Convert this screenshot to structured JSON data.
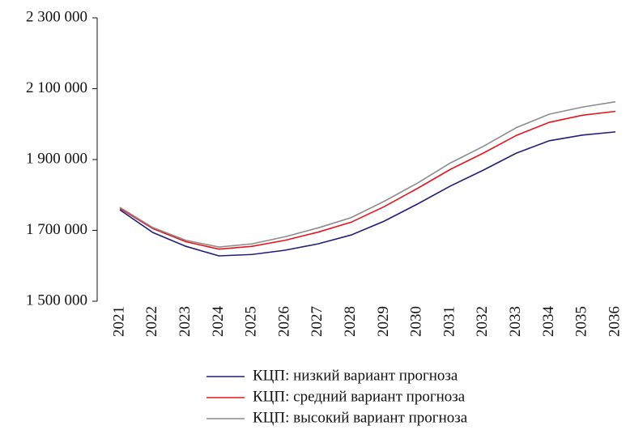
{
  "chart_data": {
    "type": "line",
    "categories": [
      "2021",
      "2022",
      "2023",
      "2024",
      "2025",
      "2026",
      "2027",
      "2028",
      "2029",
      "2030",
      "2031",
      "2032",
      "2033",
      "2034",
      "2035",
      "2036"
    ],
    "series": [
      {
        "name": "КЦП: низкий вариант прогноза",
        "color": "#1f1f7a",
        "values": [
          1758000,
          1694000,
          1655000,
          1628000,
          1632000,
          1644000,
          1662000,
          1687000,
          1726000,
          1774000,
          1825000,
          1870000,
          1918000,
          1953000,
          1969000,
          1978000
        ]
      },
      {
        "name": "КЦП: средний вариант прогноза",
        "color": "#e8141b",
        "values": [
          1762000,
          1705000,
          1668000,
          1647000,
          1655000,
          1672000,
          1695000,
          1723000,
          1767000,
          1818000,
          1872000,
          1918000,
          1968000,
          2005000,
          2025000,
          2036000
        ]
      },
      {
        "name": "КЦП: высокий вариант прогноза",
        "color": "#8c8c8c",
        "values": [
          1765000,
          1708000,
          1672000,
          1653000,
          1662000,
          1682000,
          1707000,
          1736000,
          1782000,
          1833000,
          1890000,
          1937000,
          1990000,
          2028000,
          2048000,
          2063000
        ]
      }
    ],
    "ylim": [
      1500000,
      2300000
    ],
    "yticks": [
      {
        "value": 1500000,
        "label": "1 500 000"
      },
      {
        "value": 1700000,
        "label": "1 700 000"
      },
      {
        "value": 1900000,
        "label": "1 900 000"
      },
      {
        "value": 2100000,
        "label": "2 100 000"
      },
      {
        "value": 2300000,
        "label": "2 300 000"
      }
    ],
    "legend": "bottom"
  }
}
